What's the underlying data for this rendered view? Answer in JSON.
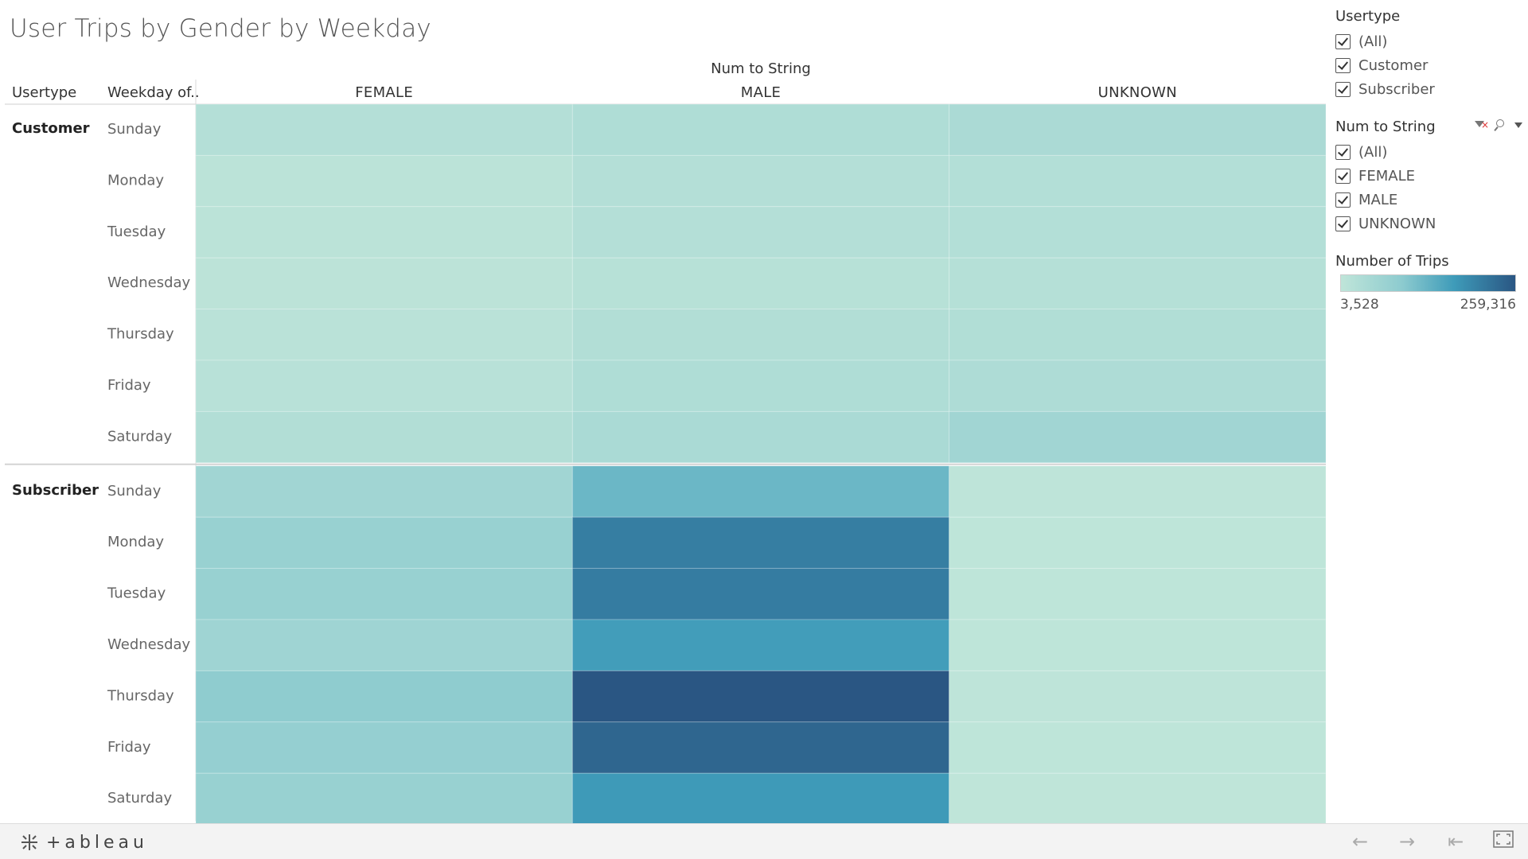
{
  "title": "User Trips by Gender by Weekday",
  "table_header": {
    "usertype": "Usertype",
    "weekday": "Weekday of..",
    "columns_field": "Num to String"
  },
  "chart_data": {
    "type": "heatmap",
    "title": "User Trips by Gender by Weekday",
    "columns_field": "Num to String",
    "columns": [
      "FEMALE",
      "MALE",
      "UNKNOWN"
    ],
    "rows_fields": [
      "Usertype",
      "Weekday of.."
    ],
    "groups": [
      {
        "name": "Customer",
        "days": [
          "Sunday",
          "Monday",
          "Tuesday",
          "Wednesday",
          "Thursday",
          "Friday",
          "Saturday"
        ],
        "values": [
          [
            22000,
            30000,
            38000
          ],
          [
            10000,
            22000,
            24000
          ],
          [
            10000,
            23000,
            24000
          ],
          [
            9000,
            18000,
            20000
          ],
          [
            12000,
            26000,
            28000
          ],
          [
            16000,
            30000,
            32000
          ],
          [
            26000,
            40000,
            55000
          ]
        ]
      },
      {
        "name": "Subscriber",
        "days": [
          "Sunday",
          "Monday",
          "Tuesday",
          "Wednesday",
          "Thursday",
          "Friday",
          "Saturday"
        ],
        "values": [
          [
            55000,
            125000,
            6000
          ],
          [
            70000,
            210000,
            5000
          ],
          [
            70000,
            212000,
            5000
          ],
          [
            58000,
            170000,
            5000
          ],
          [
            85000,
            259316,
            6000
          ],
          [
            75000,
            240000,
            5000
          ],
          [
            70000,
            175000,
            3528
          ]
        ]
      }
    ],
    "color_min": 3528,
    "color_max": 259316
  },
  "filters": [
    {
      "title": "Usertype",
      "items": [
        "(All)",
        "Customer",
        "Subscriber"
      ]
    },
    {
      "title": "Num to String",
      "items": [
        "(All)",
        "FEMALE",
        "MALE",
        "UNKNOWN"
      ]
    }
  ],
  "legend": {
    "title": "Number of Trips",
    "min_label": "3,528",
    "max_label": "259,316",
    "colors": [
      "#bfe5d9",
      "#8dcbcf",
      "#3e9bb9",
      "#2a5683"
    ]
  },
  "toolbar": {
    "logo_text": "+ableau",
    "icons": [
      "undo-icon",
      "redo-icon",
      "revert-icon",
      "fullscreen-icon"
    ]
  }
}
